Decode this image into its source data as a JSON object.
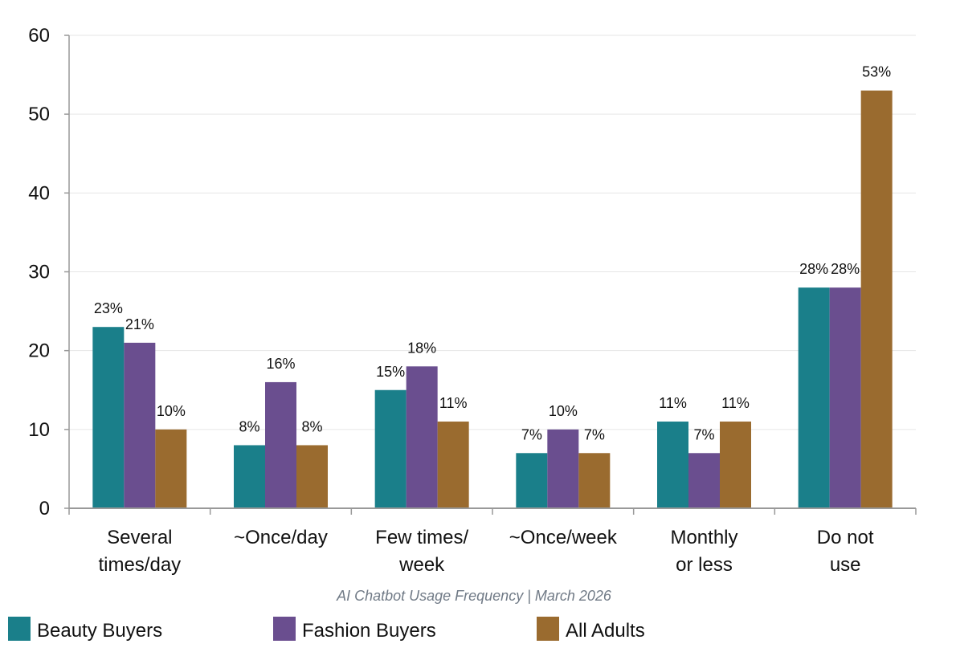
{
  "chart_data": {
    "type": "bar",
    "title": "",
    "caption": "AI Chatbot Usage Frequency  |  March 2026",
    "xlabel": "",
    "ylabel": "",
    "ylim": [
      0,
      60
    ],
    "yticks": [
      0,
      10,
      20,
      30,
      40,
      50,
      60
    ],
    "grid": true,
    "legend_position": "bottom",
    "categories": [
      [
        "Several",
        "times/day"
      ],
      [
        "~Once/day"
      ],
      [
        "Few times/",
        "week"
      ],
      [
        "~Once/week"
      ],
      [
        "Monthly",
        "or less"
      ],
      [
        "Do not",
        "use"
      ]
    ],
    "series": [
      {
        "name": "Beauty Buyers",
        "color": "#1a7f8a",
        "values": [
          23,
          8,
          15,
          7,
          11,
          28
        ],
        "labels": [
          "23%",
          "8%",
          "15%",
          "7%",
          "11%",
          "28%"
        ]
      },
      {
        "name": "Fashion Buyers",
        "color": "#6a4e8f",
        "values": [
          21,
          16,
          18,
          10,
          7,
          28
        ],
        "labels": [
          "21%",
          "16%",
          "18%",
          "10%",
          "7%",
          "28%"
        ]
      },
      {
        "name": "All Adults",
        "color": "#9a6b2f",
        "values": [
          10,
          8,
          11,
          7,
          11,
          53
        ],
        "labels": [
          "10%",
          "8%",
          "11%",
          "7%",
          "11%",
          "53%"
        ]
      }
    ]
  }
}
